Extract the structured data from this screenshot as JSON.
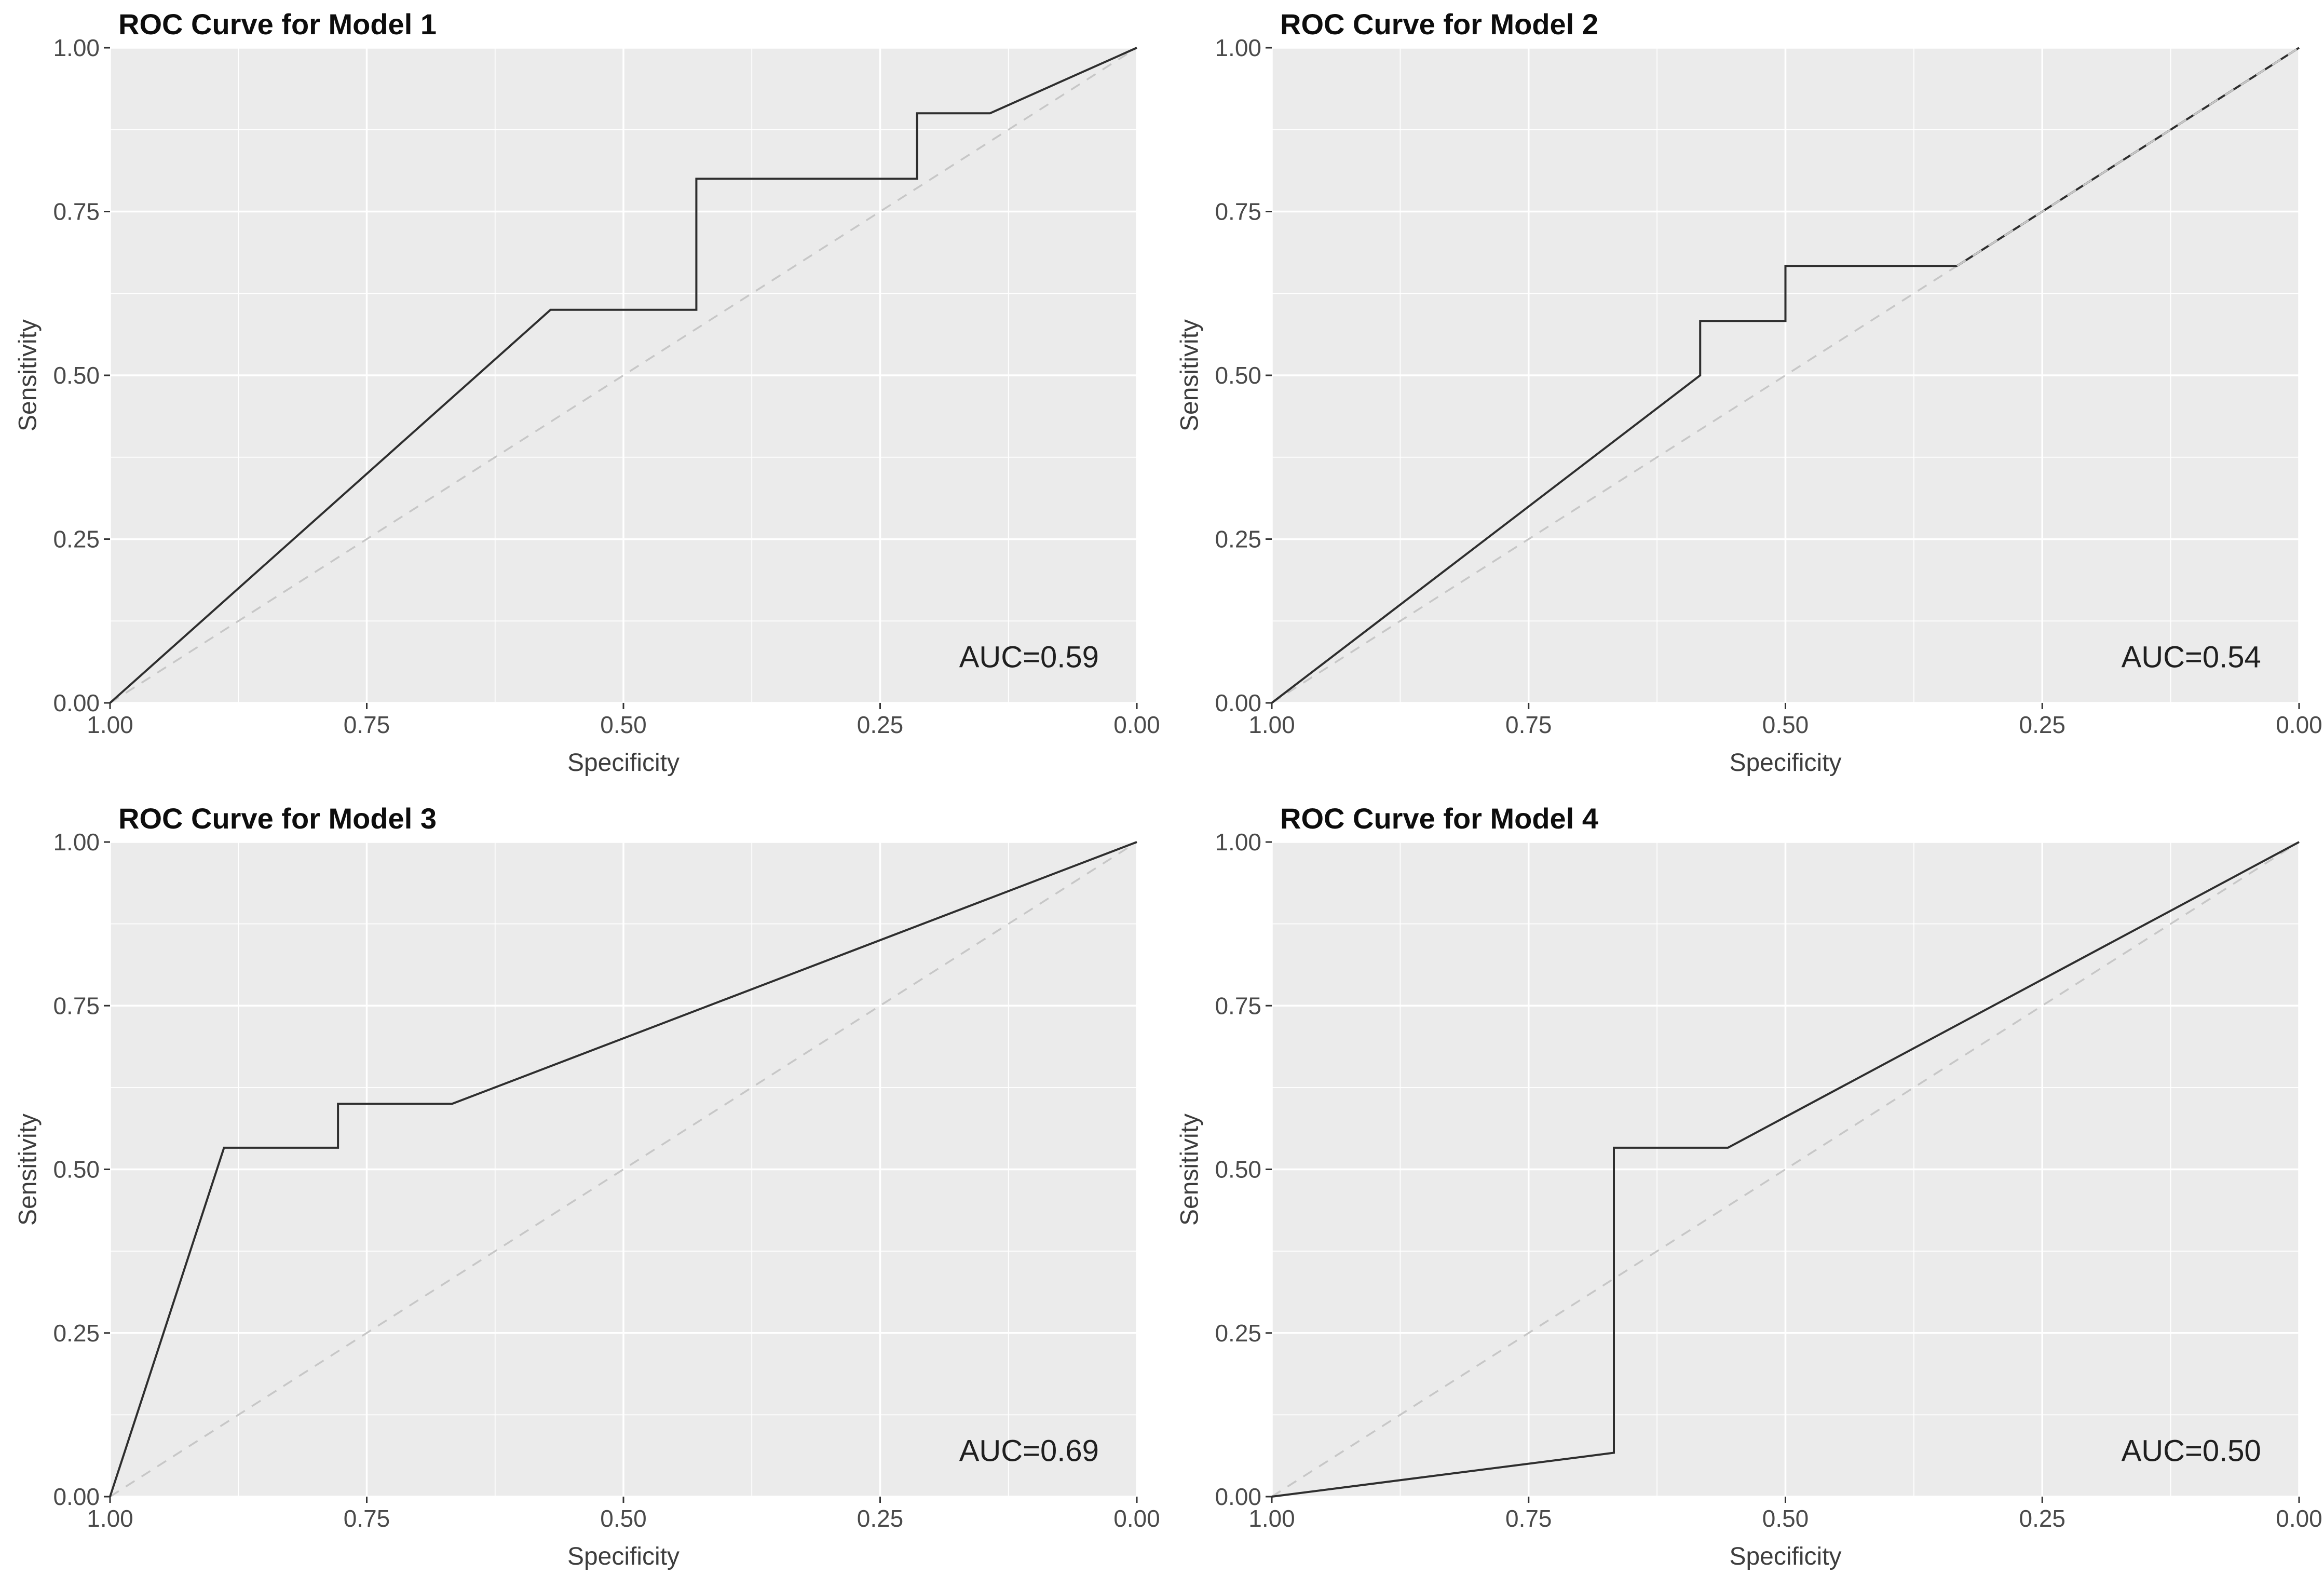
{
  "figure": {
    "kind": "roc-curve-grid",
    "rows": 2,
    "cols": 2
  },
  "theme": {
    "page_bg": "#ffffff",
    "panel_bg": "#ebebeb",
    "grid_major": "#ffffff",
    "grid_minor": "#ffffff",
    "curve_color": "#2e2e2e",
    "reference_color": "#c7c7c7",
    "tick_mark_color": "#333333",
    "tick_label_color": "#4a4a4a",
    "axis_title_color": "#3d3d3d",
    "title_color": "#0d0d0d",
    "auc_color": "#1f1f1f"
  },
  "chart_data": [
    {
      "type": "line",
      "title": "ROC Curve for Model 1",
      "xlabel": "Specificity",
      "ylabel": "Sensitivity",
      "auc_label": "AUC=0.59",
      "auc_value": 0.59,
      "x_reversed": true,
      "xlim": [
        1.0,
        0.0
      ],
      "ylim": [
        0.0,
        1.0
      ],
      "x_ticks": [
        1.0,
        0.75,
        0.5,
        0.25,
        0.0
      ],
      "y_ticks": [
        0.0,
        0.25,
        0.5,
        0.75,
        1.0
      ],
      "minor_ticks": [
        0.125,
        0.375,
        0.625,
        0.875
      ],
      "grid": true,
      "legend": false,
      "reference_line": {
        "type": "chance-diagonal",
        "from": [
          1.0,
          0.0
        ],
        "to": [
          0.0,
          1.0
        ],
        "style": "dashed"
      },
      "series": [
        {
          "name": "ROC",
          "points": [
            [
              1.0,
              0.0
            ],
            [
              0.571,
              0.6
            ],
            [
              0.429,
              0.6
            ],
            [
              0.429,
              0.8
            ],
            [
              0.214,
              0.8
            ],
            [
              0.214,
              0.9
            ],
            [
              0.143,
              0.9
            ],
            [
              0.0,
              1.0
            ]
          ]
        }
      ]
    },
    {
      "type": "line",
      "title": "ROC Curve for Model 2",
      "xlabel": "Specificity",
      "ylabel": "Sensitivity",
      "auc_label": "AUC=0.54",
      "auc_value": 0.54,
      "x_reversed": true,
      "xlim": [
        1.0,
        0.0
      ],
      "ylim": [
        0.0,
        1.0
      ],
      "x_ticks": [
        1.0,
        0.75,
        0.5,
        0.25,
        0.0
      ],
      "y_ticks": [
        0.0,
        0.25,
        0.5,
        0.75,
        1.0
      ],
      "minor_ticks": [
        0.125,
        0.375,
        0.625,
        0.875
      ],
      "grid": true,
      "legend": false,
      "reference_line": {
        "type": "chance-diagonal",
        "from": [
          1.0,
          0.0
        ],
        "to": [
          0.0,
          1.0
        ],
        "style": "dashed"
      },
      "overlap_with_reference": {
        "from": [
          0.333,
          0.667
        ],
        "to": [
          0.0,
          1.0
        ]
      },
      "series": [
        {
          "name": "ROC",
          "points": [
            [
              1.0,
              0.0
            ],
            [
              0.583,
              0.5
            ],
            [
              0.583,
              0.583
            ],
            [
              0.5,
              0.583
            ],
            [
              0.5,
              0.667
            ],
            [
              0.333,
              0.667
            ],
            [
              0.0,
              1.0
            ]
          ]
        }
      ]
    },
    {
      "type": "line",
      "title": "ROC Curve for Model 3",
      "xlabel": "Specificity",
      "ylabel": "Sensitivity",
      "auc_label": "AUC=0.69",
      "auc_value": 0.69,
      "x_reversed": true,
      "xlim": [
        1.0,
        0.0
      ],
      "ylim": [
        0.0,
        1.0
      ],
      "x_ticks": [
        1.0,
        0.75,
        0.5,
        0.25,
        0.0
      ],
      "y_ticks": [
        0.0,
        0.25,
        0.5,
        0.75,
        1.0
      ],
      "minor_ticks": [
        0.125,
        0.375,
        0.625,
        0.875
      ],
      "grid": true,
      "legend": false,
      "reference_line": {
        "type": "chance-diagonal",
        "from": [
          1.0,
          0.0
        ],
        "to": [
          0.0,
          1.0
        ],
        "style": "dashed"
      },
      "series": [
        {
          "name": "ROC",
          "points": [
            [
              1.0,
              0.0
            ],
            [
              0.889,
              0.533
            ],
            [
              0.778,
              0.533
            ],
            [
              0.778,
              0.6
            ],
            [
              0.667,
              0.6
            ],
            [
              0.0,
              1.0
            ]
          ]
        }
      ]
    },
    {
      "type": "line",
      "title": "ROC Curve for Model 4",
      "xlabel": "Specificity",
      "ylabel": "Sensitivity",
      "auc_label": "AUC=0.50",
      "auc_value": 0.5,
      "x_reversed": true,
      "xlim": [
        1.0,
        0.0
      ],
      "ylim": [
        0.0,
        1.0
      ],
      "x_ticks": [
        1.0,
        0.75,
        0.5,
        0.25,
        0.0
      ],
      "y_ticks": [
        0.0,
        0.25,
        0.5,
        0.75,
        1.0
      ],
      "minor_ticks": [
        0.125,
        0.375,
        0.625,
        0.875
      ],
      "grid": true,
      "legend": false,
      "reference_line": {
        "type": "chance-diagonal",
        "from": [
          1.0,
          0.0
        ],
        "to": [
          0.0,
          1.0
        ],
        "style": "dashed"
      },
      "series": [
        {
          "name": "ROC",
          "points": [
            [
              1.0,
              0.0
            ],
            [
              0.667,
              0.067
            ],
            [
              0.667,
              0.533
            ],
            [
              0.556,
              0.533
            ],
            [
              0.0,
              1.0
            ]
          ]
        }
      ]
    }
  ]
}
